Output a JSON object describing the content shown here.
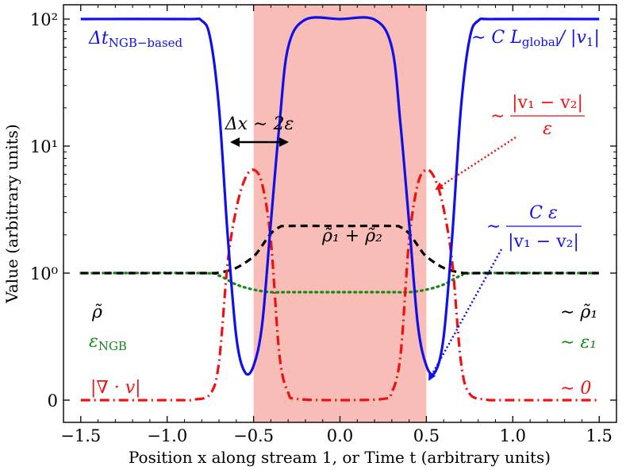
{
  "chart_data": {
    "type": "line",
    "xlabel": "Position x along stream 1, or Time t (arbitrary units)",
    "ylabel": "Value (arbitrary units)",
    "xlim": [
      -1.6,
      1.6
    ],
    "x_ticks": [
      "−1.5",
      "−1.0",
      "−0.5",
      "0.0",
      "0.5",
      "1.0",
      "1.5"
    ],
    "x_tick_values": [
      -1.5,
      -1.0,
      -0.5,
      0.0,
      0.5,
      1.0,
      1.5
    ],
    "y_scale": "symlog",
    "y_ticks": [
      "0",
      "10⁰",
      "10¹",
      "10²"
    ],
    "y_tick_values": [
      0,
      1,
      10,
      100
    ],
    "shaded_region": {
      "x": [
        -0.5,
        0.5
      ],
      "color": "#f8bdb6"
    },
    "series": [
      {
        "name": "Δt_NGB−based",
        "color": "#1010e8",
        "style": "solid",
        "x": [
          -1.5,
          -0.9,
          -0.8,
          -0.75,
          -0.7,
          -0.65,
          -0.6,
          -0.55,
          -0.5,
          -0.45,
          -0.4,
          -0.35,
          -0.3,
          -0.2,
          0.0,
          0.2,
          0.3,
          0.35,
          0.4,
          0.45,
          0.5,
          0.55,
          0.6,
          0.65,
          0.7,
          0.75,
          0.8,
          0.9,
          1.5
        ],
        "y": [
          100,
          100,
          97,
          70,
          20,
          2.0,
          0.5,
          0.22,
          0.27,
          0.6,
          2.5,
          15,
          60,
          99,
          100,
          99,
          60,
          15,
          2.5,
          0.6,
          0.27,
          0.22,
          0.5,
          2.0,
          20,
          70,
          97,
          100,
          100
        ]
      },
      {
        "name": "ρ̃",
        "color": "#000000",
        "style": "dashed",
        "x": [
          -1.5,
          -0.8,
          -0.7,
          -0.6,
          -0.5,
          -0.45,
          -0.4,
          -0.35,
          -0.3,
          0.0,
          0.3,
          0.35,
          0.4,
          0.45,
          0.5,
          0.6,
          0.7,
          0.8,
          1.5
        ],
        "y": [
          1.0,
          1.0,
          1.01,
          1.1,
          1.35,
          1.65,
          2.05,
          2.3,
          2.35,
          2.35,
          2.35,
          2.3,
          2.05,
          1.65,
          1.35,
          1.1,
          1.01,
          1.0,
          1.0
        ]
      },
      {
        "name": "ε_NGB",
        "color": "#168a16",
        "style": "dotted",
        "x": [
          -1.5,
          -0.8,
          -0.7,
          -0.6,
          -0.5,
          -0.4,
          -0.3,
          0.0,
          0.3,
          0.4,
          0.5,
          0.6,
          0.7,
          0.8,
          1.5
        ],
        "y": [
          1.0,
          1.0,
          0.98,
          0.91,
          0.87,
          0.85,
          0.85,
          0.85,
          0.85,
          0.85,
          0.87,
          0.91,
          0.98,
          1.0,
          1.0
        ]
      },
      {
        "name": "|∇ · v|",
        "color": "#ee1111",
        "style": "dashdot",
        "x": [
          -1.5,
          -0.95,
          -0.85,
          -0.75,
          -0.7,
          -0.65,
          -0.6,
          -0.55,
          -0.5,
          -0.45,
          -0.4,
          -0.35,
          -0.3,
          -0.25,
          0.0,
          0.25,
          0.3,
          0.35,
          0.4,
          0.45,
          0.5,
          0.55,
          0.6,
          0.65,
          0.7,
          0.75,
          0.85,
          0.95,
          1.5
        ],
        "y": [
          0,
          0,
          0.004,
          0.05,
          0.3,
          1.2,
          3.2,
          5.5,
          6.5,
          5.0,
          1.8,
          0.35,
          0.06,
          0.01,
          0,
          0.01,
          0.06,
          0.35,
          1.8,
          5.0,
          6.5,
          5.5,
          3.2,
          1.2,
          0.3,
          0.05,
          0.004,
          0,
          0
        ]
      }
    ],
    "annotations": {
      "dt_label": "Δt",
      "dt_sub": "NGB−based",
      "dt_right": "∼ C L",
      "dt_right_sub": "global",
      "dt_right_tail": "/ |v",
      "dt_right_tail_sub": "1",
      "dt_right_end": "|",
      "width_label": "Δx ∼ 2ε",
      "div_top_num": "|v₁ − v₂|",
      "div_top_den": "ε",
      "div_top_prefix": "∼",
      "dt_min_num": "C ε",
      "dt_min_den": "|v₁ − v₂|",
      "dt_min_prefix": "∼",
      "rho_peak": "ρ̃₁ + ρ̃₂",
      "rho_left": "ρ̃",
      "rho_right": "∼ ρ̃₁",
      "eps_left": "ε",
      "eps_left_sub": "NGB",
      "eps_right": "∼ ε₁",
      "div_left": "|∇ · v|",
      "div_right": "∼ 0"
    }
  }
}
